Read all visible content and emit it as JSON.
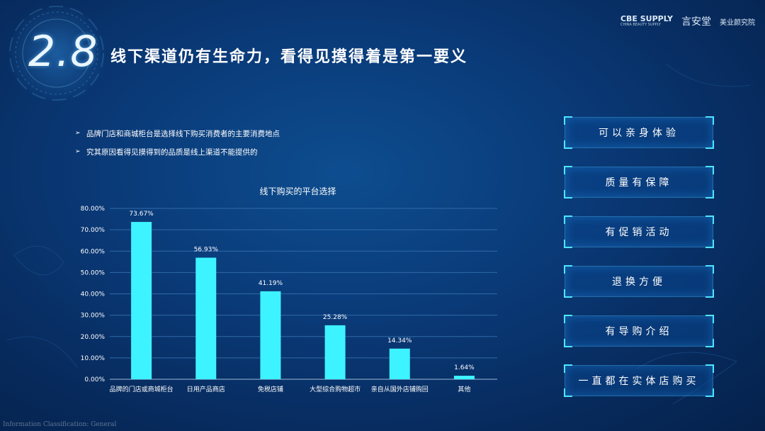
{
  "header": {
    "section_number": "2.8",
    "title": "线下渠道仍有生命力，看得见摸得着是第一要义",
    "logos": {
      "cbe_mark": "CBE SUPPLY",
      "cbe_sub": "CHINA BEAUTY SUPPLY",
      "yanxuan": "言安堂",
      "institute": "美业颜究院"
    }
  },
  "bullets": [
    "品牌门店和商城柜台是选择线下购买消费者的主要消费地点",
    "究其原因看得见摸得到的品质是线上渠道不能提供的"
  ],
  "options": [
    "可以亲身体验",
    "质量有保障",
    "有促销活动",
    "退换方便",
    "有导购介绍",
    "一直都在实体店购买"
  ],
  "footer": "Information Classification: General",
  "colors": {
    "bar": "#3df3ff",
    "accent": "#4fe6ff",
    "background": "#0a3a78"
  },
  "chart_data": {
    "type": "bar",
    "title": "线下购买的平台选择",
    "categories": [
      "品牌的门店或商城柜台",
      "日用产品商店",
      "免税店铺",
      "大型综合购物超市",
      "亲自从国外店铺购回",
      "其他"
    ],
    "values": [
      73.67,
      56.93,
      41.19,
      25.28,
      14.34,
      1.64
    ],
    "data_labels": [
      "73.67%",
      "56.93%",
      "41.19%",
      "25.28%",
      "14.34%",
      "1.64%"
    ],
    "y_ticks": [
      "0.00%",
      "10.00%",
      "20.00%",
      "30.00%",
      "40.00%",
      "50.00%",
      "60.00%",
      "70.00%",
      "80.00%"
    ],
    "ylim": [
      0,
      80
    ],
    "grid": true,
    "xlabel": "",
    "ylabel": ""
  }
}
